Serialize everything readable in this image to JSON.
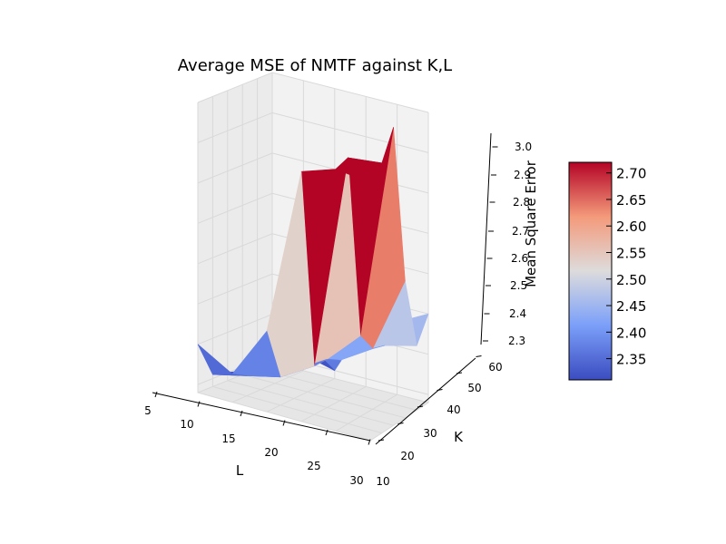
{
  "chart_data": {
    "type": "surface3d",
    "title": "Average MSE of NMTF against K,L",
    "xlabel": "L",
    "ylabel": "K",
    "zlabel": "Mean Square Error",
    "x_ticks": [
      "5",
      "10",
      "15",
      "20",
      "25",
      "30"
    ],
    "y_ticks": [
      "10",
      "20",
      "30",
      "40",
      "50",
      "60"
    ],
    "z_ticks": [
      "2.3",
      "2.4",
      "2.5",
      "2.6",
      "2.7",
      "2.8",
      "2.9",
      "3.0"
    ],
    "colorbar_ticks": [
      "2.35",
      "2.40",
      "2.45",
      "2.50",
      "2.55",
      "2.60",
      "2.65",
      "2.70"
    ],
    "colorbar_range": [
      2.31,
      2.72
    ],
    "colormap": "coolwarm",
    "xlim": [
      5,
      30
    ],
    "ylim": [
      10,
      60
    ],
    "zlim": [
      2.28,
      3.0
    ],
    "L": [
      5,
      10,
      15,
      20,
      25,
      30
    ],
    "K": [
      10,
      20,
      30,
      40,
      50,
      60
    ],
    "mse": [
      [
        2.4,
        2.31,
        2.3,
        2.29,
        2.29,
        2.3
      ],
      [
        2.35,
        2.33,
        2.32,
        2.31,
        2.31,
        2.32
      ],
      [
        2.48,
        2.35,
        2.35,
        2.36,
        2.35,
        2.3
      ],
      [
        2.9,
        2.4,
        2.4,
        2.38,
        2.38,
        2.44
      ],
      [
        2.93,
        2.94,
        2.48,
        2.43,
        2.42,
        2.46
      ],
      [
        2.92,
        2.95,
        3.02,
        2.62,
        2.44,
        2.5
      ]
    ]
  }
}
